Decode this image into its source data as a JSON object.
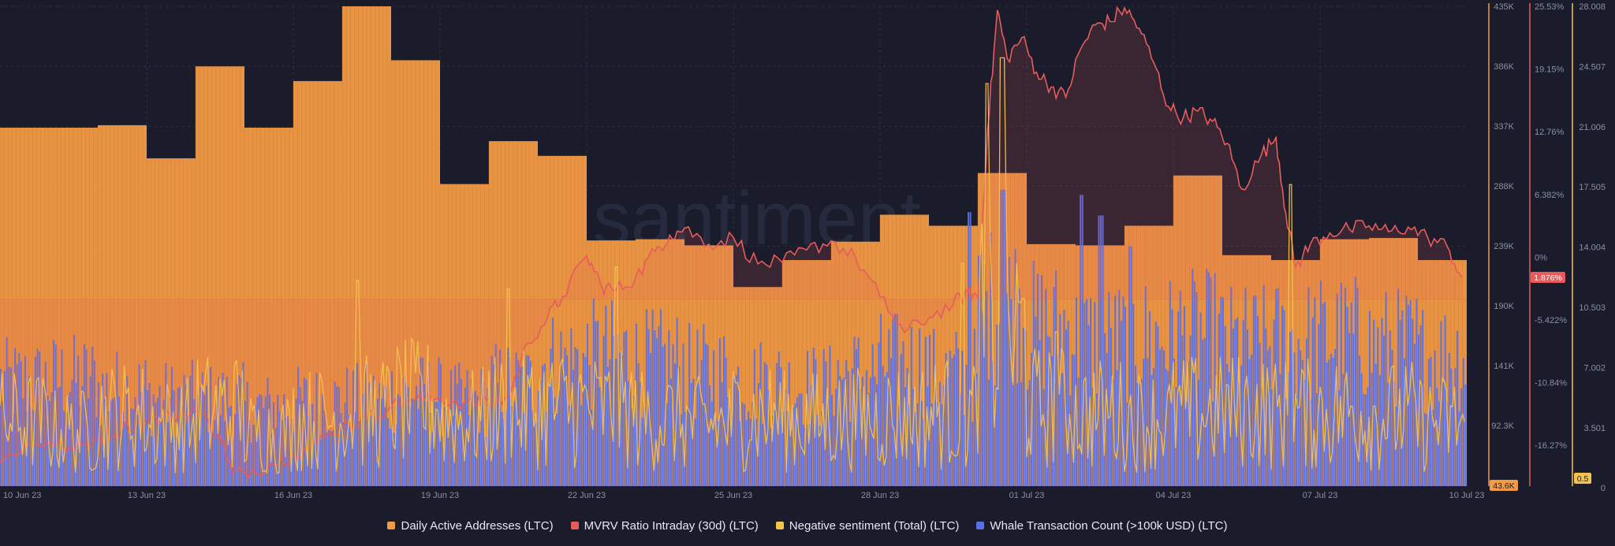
{
  "colors": {
    "background": "#1a1c2b",
    "daa": "#f29a45",
    "mvrv": "#e65c5c",
    "negative": "#f5c24d",
    "whale": "#5870e8",
    "grid": "#2c2f44",
    "tick": "#8b8fa6"
  },
  "watermark": "santiment",
  "chart_data": {
    "type": "bar",
    "x_ticks": [
      "10 Jun 23",
      "13 Jun 23",
      "16 Jun 23",
      "19 Jun 23",
      "22 Jun 23",
      "25 Jun 23",
      "28 Jun 23",
      "01 Jul 23",
      "04 Jul 23",
      "07 Jul 23",
      "10 Jul 23"
    ],
    "grid": true,
    "axes": {
      "daa": {
        "ticks": [
          "435K",
          "386K",
          "337K",
          "288K",
          "239K",
          "190K",
          "141K",
          "92.3K"
        ],
        "min": 43600,
        "max": 435000,
        "current_label": "43.6K"
      },
      "mvrv": {
        "ticks": [
          "25.53%",
          "19.15%",
          "12.76%",
          "6.382%",
          "0%",
          "-5.422%",
          "-10.84%",
          "-16.27%"
        ],
        "min": -16.27,
        "max": 25.53,
        "current_label": "1.876%"
      },
      "sentiment": {
        "ticks": [
          "28.008",
          "24.507",
          "21.006",
          "17.505",
          "14.004",
          "10.503",
          "7.002",
          "3.501",
          "0"
        ],
        "min": 0,
        "max": 28.008,
        "current_label": "0.5"
      }
    },
    "series": [
      {
        "name": "Daily Active Addresses (LTC)",
        "type": "bar",
        "y_axis": "daa",
        "daily_dates": [
          "10 Jun",
          "11 Jun",
          "12 Jun",
          "13 Jun",
          "14 Jun",
          "15 Jun",
          "16 Jun",
          "17 Jun",
          "18 Jun",
          "19 Jun",
          "20 Jun",
          "21 Jun",
          "22 Jun",
          "23 Jun",
          "24 Jun",
          "25 Jun",
          "26 Jun",
          "27 Jun",
          "28 Jun",
          "29 Jun",
          "30 Jun",
          "01 Jul",
          "02 Jul",
          "03 Jul",
          "04 Jul",
          "05 Jul",
          "06 Jul",
          "07 Jul",
          "08 Jul",
          "09 Jul"
        ],
        "values": [
          336000,
          336000,
          338000,
          311000,
          386000,
          336000,
          374000,
          435000,
          391000,
          290000,
          325000,
          313000,
          244000,
          245000,
          240000,
          206000,
          228000,
          243000,
          265000,
          256000,
          299000,
          241000,
          240000,
          256000,
          297000,
          232000,
          228000,
          245000,
          246000,
          228000
        ]
      },
      {
        "name": "MVRV Ratio Intraday (30d) (LTC)",
        "type": "line",
        "y_axis": "mvrv",
        "points": [
          {
            "d": 0.0,
            "v": -14.2
          },
          {
            "d": 0.5,
            "v": -12.8
          },
          {
            "d": 1.0,
            "v": -12.4
          },
          {
            "d": 1.5,
            "v": -13.2
          },
          {
            "d": 2.0,
            "v": -12.0
          },
          {
            "d": 2.5,
            "v": -11.3
          },
          {
            "d": 3.0,
            "v": -10.6
          },
          {
            "d": 3.5,
            "v": -10.2
          },
          {
            "d": 4.0,
            "v": -9.7
          },
          {
            "d": 4.5,
            "v": -11.8
          },
          {
            "d": 4.75,
            "v": -15.2
          },
          {
            "d": 5.0,
            "v": -15.0
          },
          {
            "d": 5.5,
            "v": -14.5
          },
          {
            "d": 6.0,
            "v": -13.5
          },
          {
            "d": 6.5,
            "v": -12.5
          },
          {
            "d": 7.0,
            "v": -11.0
          },
          {
            "d": 7.5,
            "v": -10.4
          },
          {
            "d": 8.0,
            "v": -9.3
          },
          {
            "d": 8.5,
            "v": -8.8
          },
          {
            "d": 9.0,
            "v": -8.7
          },
          {
            "d": 9.5,
            "v": -9.0
          },
          {
            "d": 10.0,
            "v": -9.2
          },
          {
            "d": 10.4,
            "v": -8.5
          },
          {
            "d": 10.8,
            "v": -3.8
          },
          {
            "d": 11.2,
            "v": -1.6
          },
          {
            "d": 11.5,
            "v": 0.2
          },
          {
            "d": 12.0,
            "v": 3.8
          },
          {
            "d": 12.3,
            "v": 1.2
          },
          {
            "d": 12.6,
            "v": 0.8
          },
          {
            "d": 13.0,
            "v": 1.9
          },
          {
            "d": 13.4,
            "v": 4.2
          },
          {
            "d": 13.7,
            "v": 5.6
          },
          {
            "d": 14.0,
            "v": 6.2
          },
          {
            "d": 14.5,
            "v": 4.8
          },
          {
            "d": 15.0,
            "v": 5.4
          },
          {
            "d": 15.5,
            "v": 3.1
          },
          {
            "d": 16.0,
            "v": 3.2
          },
          {
            "d": 16.5,
            "v": 4.3
          },
          {
            "d": 17.0,
            "v": 5.1
          },
          {
            "d": 17.5,
            "v": 3.6
          },
          {
            "d": 18.0,
            "v": 0.2
          },
          {
            "d": 18.5,
            "v": -2.9
          },
          {
            "d": 19.0,
            "v": -1.6
          },
          {
            "d": 19.5,
            "v": -0.4
          },
          {
            "d": 19.8,
            "v": 0.6
          },
          {
            "d": 20.0,
            "v": 0.2
          },
          {
            "d": 20.2,
            "v": 14.8
          },
          {
            "d": 20.4,
            "v": 25.2
          },
          {
            "d": 20.6,
            "v": 21.0
          },
          {
            "d": 20.9,
            "v": 22.8
          },
          {
            "d": 21.2,
            "v": 19.8
          },
          {
            "d": 21.5,
            "v": 18.5
          },
          {
            "d": 21.8,
            "v": 17.6
          },
          {
            "d": 22.1,
            "v": 21.8
          },
          {
            "d": 22.4,
            "v": 23.9
          },
          {
            "d": 22.7,
            "v": 24.2
          },
          {
            "d": 23.0,
            "v": 25.4
          },
          {
            "d": 23.3,
            "v": 23.6
          },
          {
            "d": 23.6,
            "v": 20.6
          },
          {
            "d": 23.9,
            "v": 16.8
          },
          {
            "d": 24.2,
            "v": 15.8
          },
          {
            "d": 24.5,
            "v": 16.4
          },
          {
            "d": 24.8,
            "v": 15.5
          },
          {
            "d": 25.1,
            "v": 13.6
          },
          {
            "d": 25.4,
            "v": 9.6
          },
          {
            "d": 25.8,
            "v": 12.6
          },
          {
            "d": 26.1,
            "v": 14.1
          },
          {
            "d": 26.3,
            "v": 7.5
          },
          {
            "d": 26.5,
            "v": 2.8
          },
          {
            "d": 26.8,
            "v": 4.8
          },
          {
            "d": 27.2,
            "v": 5.8
          },
          {
            "d": 27.6,
            "v": 6.1
          },
          {
            "d": 28.0,
            "v": 6.4
          },
          {
            "d": 28.4,
            "v": 5.9
          },
          {
            "d": 28.8,
            "v": 6.3
          },
          {
            "d": 29.2,
            "v": 5.4
          },
          {
            "d": 29.6,
            "v": 4.6
          },
          {
            "d": 29.9,
            "v": 1.9
          }
        ]
      },
      {
        "name": "Negative sentiment (Total) (LTC)",
        "type": "line",
        "y_axis": "sentiment",
        "daily_avg": [
          3.8,
          3.2,
          4.1,
          3.6,
          4.4,
          3.1,
          3.9,
          4.3,
          4.8,
          3.9,
          4.4,
          4.6,
          4.4,
          3.9,
          3.6,
          4.1,
          3.8,
          3.9,
          4.1,
          4.3,
          8.6,
          4.6,
          4.2,
          3.9,
          4.3,
          4.4,
          4.2,
          4.3,
          4.1,
          3.7
        ],
        "spikes": [
          {
            "d": 7.3,
            "v": 12.0
          },
          {
            "d": 10.4,
            "v": 11.5
          },
          {
            "d": 12.6,
            "v": 12.8
          },
          {
            "d": 19.7,
            "v": 13.0
          },
          {
            "d": 20.2,
            "v": 23.5
          },
          {
            "d": 20.5,
            "v": 25.0
          },
          {
            "d": 21.6,
            "v": 9.0
          },
          {
            "d": 26.4,
            "v": 17.6
          }
        ]
      },
      {
        "name": "Whale Transaction Count (>100k USD) (LTC)",
        "type": "bar",
        "y_axis": "sentiment",
        "daily_level": [
          6.0,
          6.2,
          5.6,
          5.1,
          5.0,
          4.6,
          4.9,
          5.0,
          5.4,
          5.0,
          5.9,
          7.2,
          7.6,
          7.2,
          6.6,
          6.1,
          5.8,
          6.5,
          7.1,
          6.5,
          10.6,
          9.2,
          8.4,
          8.6,
          8.8,
          8.2,
          8.4,
          8.6,
          8.1,
          7.6
        ],
        "spikes": [
          {
            "d": 19.8,
            "v": 16.0
          },
          {
            "d": 20.5,
            "v": 17.3
          },
          {
            "d": 22.1,
            "v": 17.0
          },
          {
            "d": 22.5,
            "v": 15.8
          },
          {
            "d": 23.1,
            "v": 14.0
          }
        ]
      }
    ]
  }
}
